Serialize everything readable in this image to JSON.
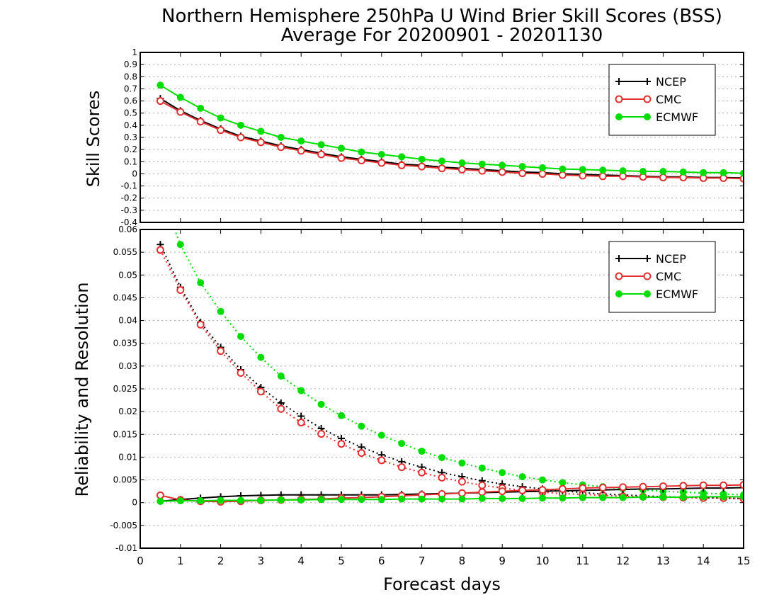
{
  "chart_data": {
    "title": "Northern Hemisphere 250hPa U Wind Brier Skill Scores (BSS)",
    "subtitle": "Average For 20200901 - 20201130",
    "xlabel": "Forecast days",
    "xlim": [
      0,
      15
    ],
    "xticks": [
      "0",
      "1",
      "2",
      "3",
      "4",
      "5",
      "6",
      "7",
      "8",
      "9",
      "10",
      "11",
      "12",
      "13",
      "14",
      "15"
    ],
    "panels": [
      {
        "type": "line",
        "ylabel": "Skill Scores",
        "ylim": [
          -0.4,
          1
        ],
        "yticks": [
          "-0.4",
          "-0.3",
          "-0.2",
          "-0.1",
          "0",
          "0.1",
          "0.2",
          "0.3",
          "0.4",
          "0.5",
          "0.6",
          "0.7",
          "0.8",
          "0.9",
          "1"
        ],
        "grid": true,
        "legend_position": "top-right",
        "x": [
          0.5,
          1,
          1.5,
          2,
          2.5,
          3,
          3.5,
          4,
          4.5,
          5,
          5.5,
          6,
          6.5,
          7,
          7.5,
          8,
          8.5,
          9,
          9.5,
          10,
          10.5,
          11,
          11.5,
          12,
          12.5,
          13,
          13.5,
          14,
          14.5,
          15
        ],
        "series": [
          {
            "name": "NCEP",
            "color": "#000000",
            "marker": "plus",
            "style": "solid",
            "values": [
              0.62,
              0.52,
              0.44,
              0.37,
              0.31,
              0.27,
              0.23,
              0.2,
              0.17,
              0.14,
              0.12,
              0.1,
              0.08,
              0.07,
              0.055,
              0.045,
              0.035,
              0.025,
              0.015,
              0.01,
              0.0,
              -0.005,
              -0.01,
              -0.015,
              -0.02,
              -0.025,
              -0.025,
              -0.03,
              -0.03,
              -0.035
            ]
          },
          {
            "name": "CMC",
            "color": "#e03030",
            "marker": "open-circle",
            "style": "solid",
            "values": [
              0.6,
              0.51,
              0.43,
              0.36,
              0.3,
              0.26,
              0.22,
              0.19,
              0.16,
              0.13,
              0.11,
              0.09,
              0.07,
              0.06,
              0.045,
              0.035,
              0.025,
              0.015,
              0.005,
              0.0,
              -0.01,
              -0.015,
              -0.02,
              -0.02,
              -0.025,
              -0.03,
              -0.03,
              -0.035,
              -0.035,
              -0.04
            ]
          },
          {
            "name": "ECMWF",
            "color": "#00dd00",
            "marker": "filled-circle",
            "style": "solid",
            "values": [
              0.73,
              0.63,
              0.54,
              0.46,
              0.4,
              0.35,
              0.3,
              0.27,
              0.24,
              0.21,
              0.18,
              0.16,
              0.14,
              0.12,
              0.105,
              0.09,
              0.08,
              0.07,
              0.06,
              0.05,
              0.04,
              0.035,
              0.03,
              0.025,
              0.02,
              0.02,
              0.015,
              0.01,
              0.01,
              0.005
            ]
          }
        ]
      },
      {
        "type": "line",
        "ylabel": "Reliability and Resolution",
        "ylim": [
          -0.01,
          0.06
        ],
        "yticks": [
          "-0.01",
          "-0.005",
          "0",
          "0.005",
          "0.01",
          "0.015",
          "0.02",
          "0.025",
          "0.03",
          "0.035",
          "0.04",
          "0.045",
          "0.05",
          "0.055",
          "0.06"
        ],
        "grid": true,
        "legend_position": "top-right",
        "x": [
          0.5,
          1,
          1.5,
          2,
          2.5,
          3,
          3.5,
          4,
          4.5,
          5,
          5.5,
          6,
          6.5,
          7,
          7.5,
          8,
          8.5,
          9,
          9.5,
          10,
          10.5,
          11,
          11.5,
          12,
          12.5,
          13,
          13.5,
          14,
          14.5,
          15
        ],
        "series": [
          {
            "name": "NCEP",
            "color": "#000000",
            "marker": "plus",
            "style": "dotted",
            "values": [
              0.0567,
              0.0473,
              0.0396,
              0.0341,
              0.0292,
              0.0253,
              0.0219,
              0.019,
              0.0163,
              0.0141,
              0.0122,
              0.0105,
              0.009,
              0.0078,
              0.0066,
              0.0057,
              0.0048,
              0.0041,
              0.0035,
              0.003,
              0.0026,
              0.0022,
              0.0019,
              0.0017,
              0.0015,
              0.0013,
              0.0012,
              0.0011,
              0.001,
              0.0009
            ]
          },
          {
            "name": "CMC",
            "color": "#e03030",
            "marker": "open-circle",
            "style": "dotted",
            "values": [
              0.0555,
              0.0467,
              0.0391,
              0.0333,
              0.0285,
              0.0244,
              0.0206,
              0.0176,
              0.0151,
              0.0129,
              0.0109,
              0.0093,
              0.0078,
              0.0066,
              0.0055,
              0.0046,
              0.0038,
              0.0032,
              0.0027,
              0.0023,
              0.002,
              0.0018,
              0.0016,
              0.0014,
              0.0013,
              0.0012,
              0.0011,
              0.001,
              0.001,
              0.0009
            ]
          },
          {
            "name": "ECMWF",
            "color": "#00dd00",
            "marker": "filled-circle",
            "style": "dotted",
            "values": [
              0.068,
              0.0567,
              0.0483,
              0.042,
              0.0365,
              0.0319,
              0.0278,
              0.0246,
              0.0216,
              0.0191,
              0.0168,
              0.0148,
              0.013,
              0.0113,
              0.0099,
              0.0087,
              0.0076,
              0.0066,
              0.0057,
              0.005,
              0.0044,
              0.0039,
              0.0035,
              0.0031,
              0.0028,
              0.0025,
              0.0023,
              0.0021,
              0.0019,
              0.0017
            ]
          },
          {
            "name": "NCEP",
            "color": "#000000",
            "marker": "plus",
            "style": "solid",
            "values": [
              0.0003,
              0.0007,
              0.001,
              0.0013,
              0.0015,
              0.0016,
              0.0017,
              0.0017,
              0.0017,
              0.0017,
              0.0017,
              0.0017,
              0.0018,
              0.0019,
              0.002,
              0.0021,
              0.0022,
              0.0023,
              0.0024,
              0.0025,
              0.0026,
              0.0027,
              0.0028,
              0.0029,
              0.003,
              0.003,
              0.0031,
              0.0032,
              0.0032,
              0.0033
            ]
          },
          {
            "name": "CMC",
            "color": "#e03030",
            "marker": "open-circle",
            "style": "solid",
            "values": [
              0.0016,
              0.0006,
              0.0003,
              0.0002,
              0.0003,
              0.0005,
              0.0006,
              0.0007,
              0.0008,
              0.001,
              0.0011,
              0.0013,
              0.0015,
              0.0017,
              0.0019,
              0.0021,
              0.0023,
              0.0025,
              0.0027,
              0.0028,
              0.003,
              0.0032,
              0.0033,
              0.0034,
              0.0035,
              0.0036,
              0.0037,
              0.0038,
              0.0038,
              0.0039
            ]
          },
          {
            "name": "ECMWF",
            "color": "#00dd00",
            "marker": "filled-circle",
            "style": "solid",
            "values": [
              0.0003,
              0.0004,
              0.0004,
              0.0005,
              0.0005,
              0.0005,
              0.0006,
              0.0006,
              0.0007,
              0.0007,
              0.0007,
              0.0007,
              0.0008,
              0.0008,
              0.0008,
              0.0008,
              0.0009,
              0.0009,
              0.0009,
              0.001,
              0.001,
              0.0011,
              0.0011,
              0.0011,
              0.0012,
              0.0012,
              0.0012,
              0.0013,
              0.0013,
              0.0013
            ]
          }
        ]
      }
    ]
  }
}
